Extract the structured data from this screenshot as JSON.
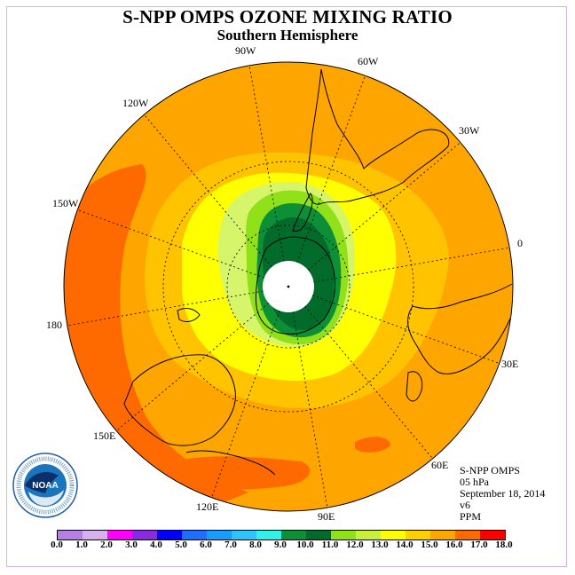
{
  "header": {
    "title": "S-NPP OMPS OZONE MIXING RATIO",
    "subtitle": "Southern Hemisphere"
  },
  "longitude_labels": {
    "lon_90w": "90W",
    "lon_60w": "60W",
    "lon_120w": "120W",
    "lon_30w": "30W",
    "lon_150w": "150W",
    "lon_0": "0",
    "lon_180": "180",
    "lon_30e": "30E",
    "lon_150e": "150E",
    "lon_60e": "60E",
    "lon_120e": "120E",
    "lon_90e": "90E"
  },
  "info": {
    "instrument": "S-NPP OMPS",
    "level": "05 hPa",
    "date": "September 18, 2014",
    "version": "v6",
    "units": "PPM"
  },
  "logo": {
    "text": "NOAA",
    "ring_text": "NATIONAL OCEANIC AND ATMOSPHERIC ADMINISTRATION · U.S. DEPARTMENT OF COMMERCE"
  },
  "colorbar": {
    "ticks": [
      "0.0",
      "1.0",
      "2.0",
      "3.0",
      "4.0",
      "5.0",
      "6.0",
      "7.0",
      "8.0",
      "9.0",
      "10.0",
      "11.0",
      "12.0",
      "13.0",
      "14.0",
      "15.0",
      "16.0",
      "17.0",
      "18.0"
    ],
    "colors": [
      "#b67fe6",
      "#d8b0f0",
      "#ff00ff",
      "#8a2be2",
      "#0000ff",
      "#1e6fff",
      "#199cff",
      "#2ec4ff",
      "#31f2e6",
      "#0d8f38",
      "#006b2a",
      "#90e01a",
      "#c8f03a",
      "#ffff00",
      "#ffd000",
      "#ffa600",
      "#ff6a00",
      "#ff0000",
      "#8b4513"
    ]
  },
  "map": {
    "projection": "south polar stereographic",
    "dominant_field": "ozone mixing ratio ~14-15 PPM over most of hemisphere",
    "ring_colors": {
      "outer": "#ffa500",
      "band_150w_180": "#ff6a00",
      "inner_orange": "#ffc300",
      "yellow": "#ffff00",
      "yellow_green": "#d7f56a",
      "light_green": "#90e01a",
      "green": "#0d8f38",
      "dark_green": "#006b2a",
      "pole": "#ffffff"
    }
  }
}
